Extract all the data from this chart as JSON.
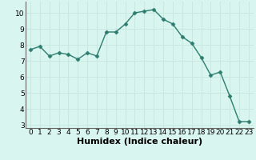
{
  "x": [
    0,
    1,
    2,
    3,
    4,
    5,
    6,
    7,
    8,
    9,
    10,
    11,
    12,
    13,
    14,
    15,
    16,
    17,
    18,
    19,
    20,
    21,
    22,
    23
  ],
  "y": [
    7.7,
    7.9,
    7.3,
    7.5,
    7.4,
    7.1,
    7.5,
    7.3,
    8.8,
    8.8,
    9.3,
    10.0,
    10.1,
    10.2,
    9.6,
    9.3,
    8.5,
    8.1,
    7.2,
    6.1,
    6.3,
    4.8,
    3.2,
    3.2
  ],
  "xlabel": "Humidex (Indice chaleur)",
  "ylim_min": 2.8,
  "ylim_max": 10.7,
  "yticks": [
    3,
    4,
    5,
    6,
    7,
    8,
    9,
    10
  ],
  "xticks": [
    0,
    1,
    2,
    3,
    4,
    5,
    6,
    7,
    8,
    9,
    10,
    11,
    12,
    13,
    14,
    15,
    16,
    17,
    18,
    19,
    20,
    21,
    22,
    23
  ],
  "line_color": "#2e7d6e",
  "marker": "D",
  "marker_size": 2.5,
  "bg_color": "#d9f5f0",
  "grid_color": "#c8e8e0",
  "tick_label_fontsize": 6.5,
  "xlabel_fontsize": 8,
  "line_width": 1.0
}
